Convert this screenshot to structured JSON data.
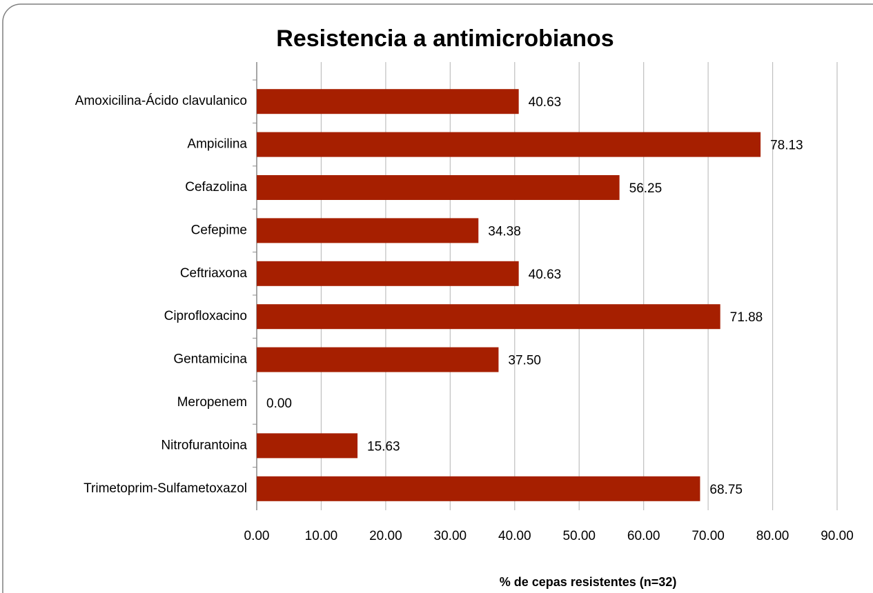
{
  "chart_data": {
    "type": "bar",
    "orientation": "horizontal",
    "title": "Resistencia a antimicrobianos",
    "x_label": "% de cepas resistentes (n=32)",
    "categories": [
      "Amoxicilina-Ácido clavulanico",
      "Ampicilina",
      "Cefazolina",
      "Cefepime",
      "Ceftriaxona",
      "Ciprofloxacino",
      "Gentamicina",
      "Meropenem",
      "Nitrofurantoina",
      "Trimetoprim-Sulfametoxazol"
    ],
    "values": [
      40.63,
      78.13,
      56.25,
      34.38,
      40.63,
      71.88,
      37.5,
      0,
      15.63,
      68.75
    ],
    "value_labels": [
      "40.63",
      "78.13",
      "56.25",
      "34.38",
      "40.63",
      "71.88",
      "37.50",
      "0.00",
      "15.63",
      "68.75"
    ],
    "color": "#a61f00",
    "xlim": [
      0,
      90
    ],
    "xticks": [
      {
        "value": 0,
        "label": "0.00"
      },
      {
        "value": 10,
        "label": "10.00"
      },
      {
        "value": 20,
        "label": "20.00"
      },
      {
        "value": 30,
        "label": "30.00"
      },
      {
        "value": 40,
        "label": "40.00"
      },
      {
        "value": 50,
        "label": "50.00"
      },
      {
        "value": 60,
        "label": "60.00"
      },
      {
        "value": 70,
        "label": "70.00"
      },
      {
        "value": 80,
        "label": "80.00"
      },
      {
        "value": 90,
        "label": "90.00"
      }
    ],
    "grid": true
  }
}
